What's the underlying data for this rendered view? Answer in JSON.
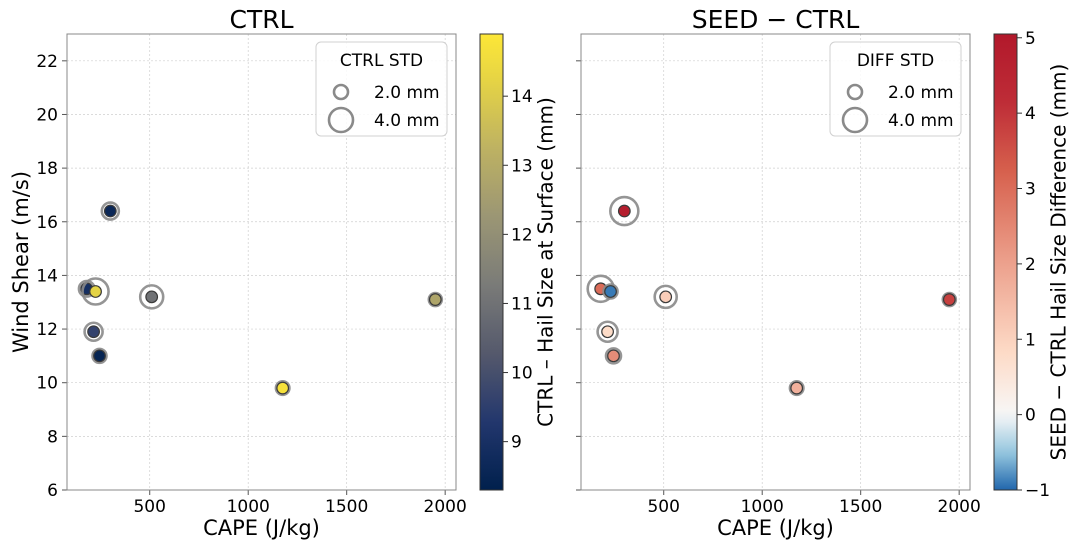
{
  "chart_data": [
    {
      "type": "scatter",
      "title": "CTRL",
      "xlabel": "CAPE (J/kg)",
      "ylabel": "Wind Shear (m/s)",
      "xlim": [
        80,
        2055
      ],
      "ylim": [
        6,
        23
      ],
      "xticks": [
        500,
        1000,
        1500,
        2000
      ],
      "yticks": [
        6,
        8,
        10,
        12,
        14,
        16,
        18,
        20,
        22
      ],
      "grid": true,
      "legend": {
        "title": "CTRL STD",
        "placement": "top-right",
        "entries": [
          {
            "label": "2.0 mm",
            "std": 2.0
          },
          {
            "label": "4.0 mm",
            "std": 4.0
          }
        ]
      },
      "colorbar": {
        "label": "CTRL – Hail Size at Surface (mm)",
        "colormap": "cividis",
        "range": [
          8.3,
          14.9
        ],
        "ticks": [
          9,
          10,
          11,
          12,
          13,
          14
        ]
      },
      "points": [
        {
          "x": 180,
          "y": 13.5,
          "value": 8.9,
          "std": 1.5
        },
        {
          "x": 215,
          "y": 11.9,
          "value": 9.6,
          "std": 2.0
        },
        {
          "x": 225,
          "y": 13.4,
          "value": 14.2,
          "std": 3.6
        },
        {
          "x": 245,
          "y": 11.0,
          "value": 8.5,
          "std": 1.2
        },
        {
          "x": 300,
          "y": 16.4,
          "value": 8.6,
          "std": 1.8
        },
        {
          "x": 510,
          "y": 13.2,
          "value": 11.0,
          "std": 3.0
        },
        {
          "x": 1175,
          "y": 9.8,
          "value": 14.7,
          "std": 1.1
        },
        {
          "x": 1950,
          "y": 13.1,
          "value": 12.8,
          "std": 1.0
        }
      ]
    },
    {
      "type": "scatter",
      "title": "SEED − CTRL",
      "xlabel": "CAPE (J/kg)",
      "ylabel": "",
      "xlim": [
        80,
        2055
      ],
      "ylim": [
        6,
        23
      ],
      "xticks": [
        500,
        1000,
        1500,
        2000
      ],
      "yticks": [
        6,
        8,
        10,
        12,
        14,
        16,
        18,
        20,
        22
      ],
      "grid": true,
      "legend": {
        "title": "DIFF STD",
        "placement": "top-right",
        "entries": [
          {
            "label": "2.0 mm",
            "std": 2.0
          },
          {
            "label": "4.0 mm",
            "std": 4.0
          }
        ]
      },
      "colorbar": {
        "label": "SEED − CTRL Hail Size Difference (mm)",
        "colormap": "RdBu_r",
        "range": [
          -1,
          5.05
        ],
        "ticks": [
          -1,
          0,
          1,
          2,
          3,
          4,
          5
        ],
        "tick_labels": [
          "−1",
          "0",
          "1",
          "2",
          "3",
          "4",
          "5"
        ]
      },
      "points": [
        {
          "x": 180,
          "y": 13.5,
          "value": 3.0,
          "std": 3.6
        },
        {
          "x": 215,
          "y": 11.9,
          "value": 0.8,
          "std": 2.4
        },
        {
          "x": 230,
          "y": 13.4,
          "value": -0.9,
          "std": 1.2
        },
        {
          "x": 245,
          "y": 11.0,
          "value": 2.4,
          "std": 1.4
        },
        {
          "x": 300,
          "y": 16.4,
          "value": 4.8,
          "std": 4.0
        },
        {
          "x": 510,
          "y": 13.2,
          "value": 1.1,
          "std": 2.8
        },
        {
          "x": 1175,
          "y": 9.8,
          "value": 1.7,
          "std": 1.1
        },
        {
          "x": 1950,
          "y": 13.1,
          "value": 3.8,
          "std": 1.0
        }
      ]
    }
  ]
}
